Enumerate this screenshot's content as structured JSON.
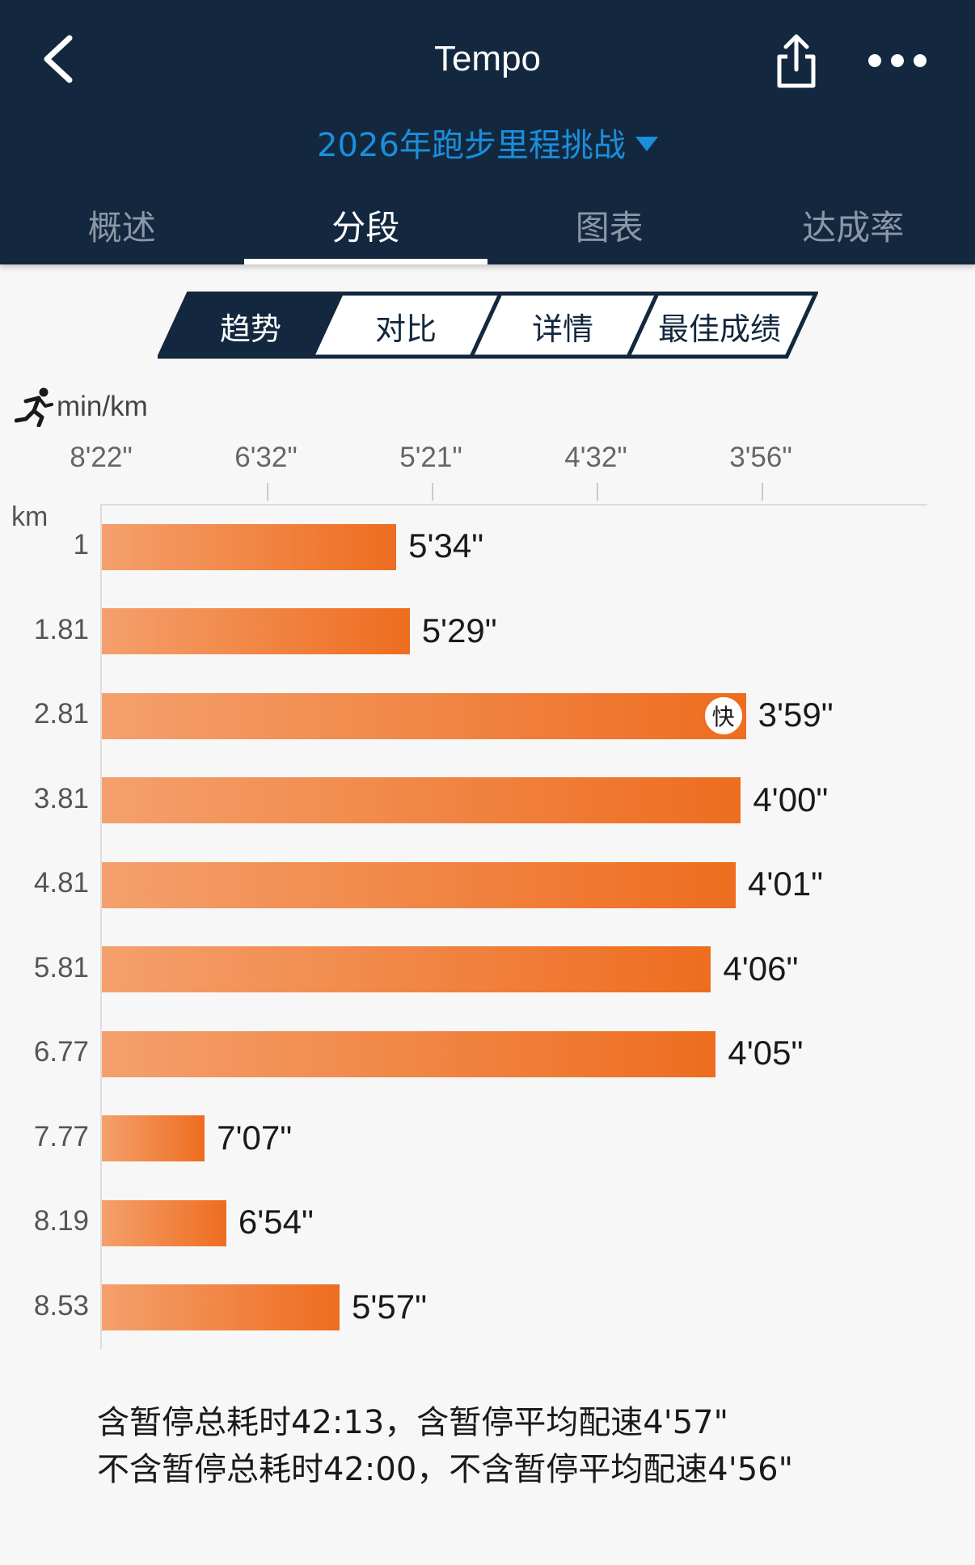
{
  "header": {
    "title": "Tempo",
    "challenge": "2026年跑步里程挑战",
    "tabs": [
      {
        "label": "概述",
        "active": false
      },
      {
        "label": "分段",
        "active": true
      },
      {
        "label": "图表",
        "active": false
      },
      {
        "label": "达成率",
        "active": false
      }
    ]
  },
  "segments": [
    {
      "label": "趋势",
      "active": true
    },
    {
      "label": "对比",
      "active": false
    },
    {
      "label": "详情",
      "active": false
    },
    {
      "label": "最佳成绩",
      "active": false
    }
  ],
  "chart_data": {
    "type": "bar",
    "orientation": "horizontal",
    "unit_label": "min/km",
    "category_header": "km",
    "x_ticks": [
      "8'22\"",
      "6'32\"",
      "5'21\"",
      "4'32\"",
      "3'56\""
    ],
    "categories": [
      "1",
      "1.81",
      "2.81",
      "3.81",
      "4.81",
      "5.81",
      "6.77",
      "7.77",
      "8.19",
      "8.53"
    ],
    "value_labels": [
      "5'34\"",
      "5'29\"",
      "3'59\"",
      "4'00\"",
      "4'01\"",
      "4'06\"",
      "4'05\"",
      "7'07\"",
      "6'54\"",
      "5'57\""
    ],
    "values_sec_per_km": [
      334,
      329,
      239,
      240,
      241,
      246,
      245,
      427,
      414,
      357
    ],
    "fastest_badge": "快",
    "fastest_index": 2
  },
  "summary": {
    "line1": "含暂停总耗时42:13，含暂停平均配速4'57\"",
    "line2": "不含暂停总耗时42:00，不含暂停平均配速4'56\""
  },
  "colors": {
    "header_bg": "#13283f",
    "accent_blue": "#1a8fdb",
    "bar_start": "#f4a06d",
    "bar_end": "#ee6d1f"
  },
  "icons": {
    "back": "chevron-left-icon",
    "share": "share-icon",
    "more": "more-dots-icon",
    "runner": "runner-icon"
  }
}
